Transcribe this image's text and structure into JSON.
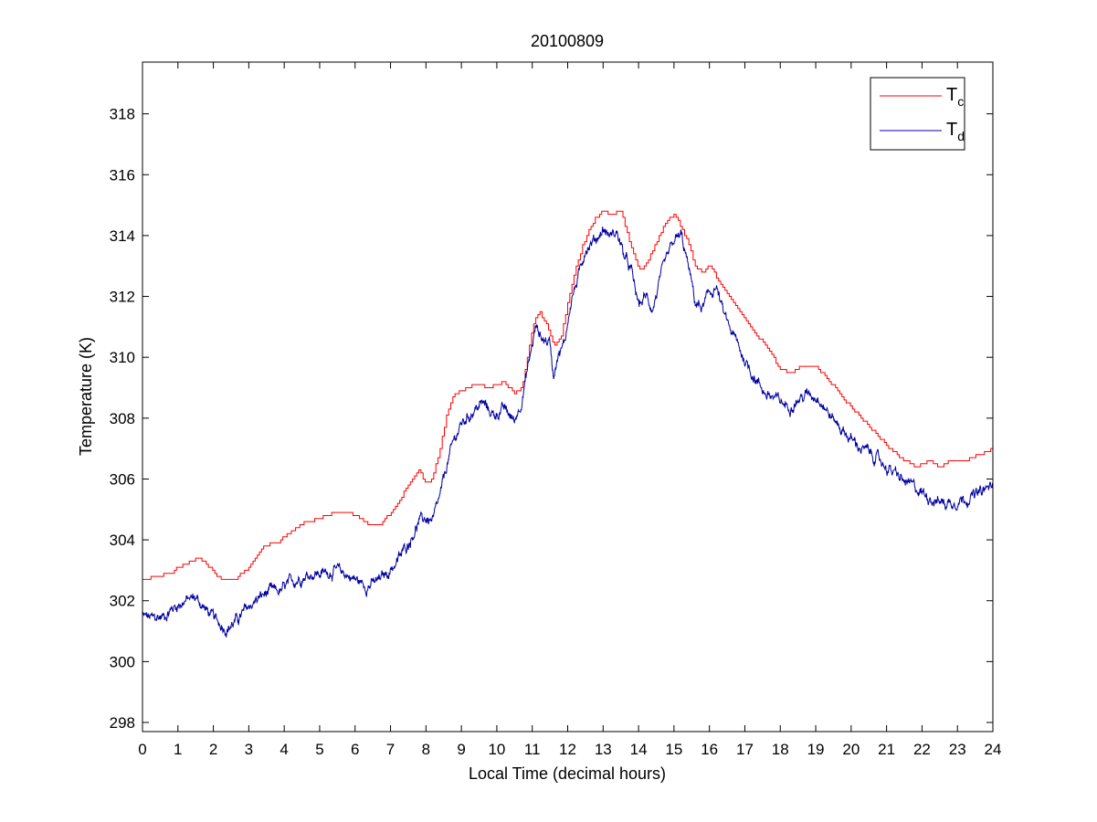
{
  "chart_data": {
    "type": "line",
    "title": "20100809",
    "xlabel": "Local Time (decimal hours)",
    "ylabel": "Temperature (K)",
    "xlim": [
      0,
      24
    ],
    "ylim": [
      297.7,
      319.7
    ],
    "xticks": [
      0,
      1,
      2,
      3,
      4,
      5,
      6,
      7,
      8,
      9,
      10,
      11,
      12,
      13,
      14,
      15,
      16,
      17,
      18,
      19,
      20,
      21,
      22,
      23,
      24
    ],
    "yticks": [
      298,
      300,
      302,
      304,
      306,
      308,
      310,
      312,
      314,
      316,
      318
    ],
    "grid": false,
    "legend_position": "top-right",
    "series": [
      {
        "name": "T",
        "name_subscript": "c",
        "color": "#ff0000",
        "style": "stepped",
        "x": [
          0,
          0.4,
          0.8,
          1.0,
          1.4,
          1.6,
          2.0,
          2.2,
          2.6,
          3.0,
          3.4,
          3.8,
          4.2,
          4.6,
          5.0,
          5.4,
          5.8,
          6.0,
          6.4,
          6.7,
          7.0,
          7.3,
          7.6,
          7.8,
          8.0,
          8.2,
          8.4,
          8.6,
          8.8,
          9.0,
          9.4,
          9.8,
          10.2,
          10.5,
          10.7,
          10.9,
          11.0,
          11.2,
          11.4,
          11.6,
          11.8,
          12.0,
          12.2,
          12.4,
          12.6,
          12.8,
          13.0,
          13.2,
          13.5,
          13.8,
          14.0,
          14.2,
          14.4,
          14.6,
          14.8,
          15.0,
          15.2,
          15.4,
          15.6,
          15.8,
          16.0,
          16.4,
          16.8,
          17.2,
          17.6,
          18.0,
          18.3,
          18.6,
          19.0,
          19.4,
          19.8,
          20.2,
          20.6,
          21.0,
          21.4,
          21.8,
          22.2,
          22.5,
          22.8,
          23.2,
          23.6,
          24.0
        ],
        "y": [
          302.7,
          302.8,
          302.9,
          303.1,
          303.3,
          303.4,
          303.0,
          302.7,
          302.7,
          303.1,
          303.8,
          303.9,
          304.3,
          304.6,
          304.7,
          304.9,
          304.9,
          304.8,
          304.5,
          304.5,
          304.9,
          305.4,
          306.0,
          306.3,
          305.8,
          306.1,
          307.0,
          308.2,
          308.8,
          308.9,
          309.1,
          309.0,
          309.2,
          308.8,
          309.0,
          310.2,
          311.0,
          311.5,
          311.1,
          310.4,
          310.6,
          311.8,
          312.8,
          313.6,
          314.2,
          314.6,
          314.8,
          314.7,
          314.8,
          313.6,
          312.9,
          313.0,
          313.5,
          314.0,
          314.5,
          314.7,
          314.3,
          313.8,
          313.0,
          312.8,
          313.0,
          312.3,
          311.6,
          310.9,
          310.4,
          309.6,
          309.5,
          309.7,
          309.7,
          309.2,
          308.6,
          308.1,
          307.6,
          307.1,
          306.7,
          306.4,
          306.6,
          306.4,
          306.6,
          306.6,
          306.8,
          307.0
        ]
      },
      {
        "name": "T",
        "name_subscript": "d",
        "color": "#0000a0",
        "style": "noisy",
        "x": [
          0,
          0.3,
          0.6,
          0.9,
          1.2,
          1.5,
          1.8,
          2.1,
          2.4,
          2.7,
          3.0,
          3.3,
          3.6,
          3.9,
          4.2,
          4.5,
          4.8,
          5.1,
          5.4,
          5.7,
          6.0,
          6.3,
          6.6,
          6.9,
          7.2,
          7.5,
          7.8,
          8.0,
          8.2,
          8.4,
          8.6,
          8.8,
          9.0,
          9.3,
          9.6,
          9.9,
          10.2,
          10.5,
          10.7,
          10.9,
          11.1,
          11.3,
          11.5,
          11.6,
          11.7,
          11.9,
          12.1,
          12.3,
          12.5,
          12.8,
          13.0,
          13.2,
          13.4,
          13.6,
          13.8,
          14.0,
          14.2,
          14.4,
          14.6,
          14.8,
          15.0,
          15.2,
          15.4,
          15.6,
          15.8,
          16.0,
          16.2,
          16.4,
          16.6,
          16.8,
          17.0,
          17.3,
          17.6,
          17.9,
          18.2,
          18.5,
          18.8,
          19.1,
          19.4,
          19.7,
          20.0,
          20.3,
          20.6,
          20.9,
          21.2,
          21.5,
          21.8,
          22.1,
          22.4,
          22.7,
          23.0,
          23.3,
          23.6,
          24.0
        ],
        "y": [
          301.5,
          301.4,
          301.5,
          301.8,
          302.0,
          302.1,
          301.7,
          301.3,
          301.1,
          301.4,
          301.8,
          302.1,
          302.3,
          302.3,
          302.6,
          302.8,
          302.9,
          302.9,
          303.0,
          302.9,
          302.7,
          302.5,
          302.6,
          302.9,
          303.3,
          303.9,
          304.6,
          304.7,
          304.6,
          305.4,
          306.5,
          307.3,
          307.8,
          308.2,
          308.5,
          308.1,
          308.3,
          307.9,
          308.6,
          309.8,
          311.0,
          310.6,
          310.5,
          309.4,
          310.1,
          310.4,
          311.9,
          312.6,
          313.6,
          313.9,
          314.2,
          314.0,
          314.1,
          313.3,
          312.8,
          311.7,
          312.0,
          311.6,
          312.5,
          313.2,
          313.8,
          314.0,
          313.0,
          311.8,
          311.6,
          312.1,
          312.3,
          311.4,
          310.9,
          310.4,
          309.9,
          309.3,
          308.8,
          308.6,
          308.4,
          308.6,
          308.8,
          308.7,
          308.1,
          307.7,
          307.3,
          307.0,
          306.8,
          306.5,
          306.2,
          305.9,
          305.7,
          305.5,
          305.3,
          305.2,
          305.3,
          305.4,
          305.5,
          305.8
        ]
      }
    ]
  }
}
